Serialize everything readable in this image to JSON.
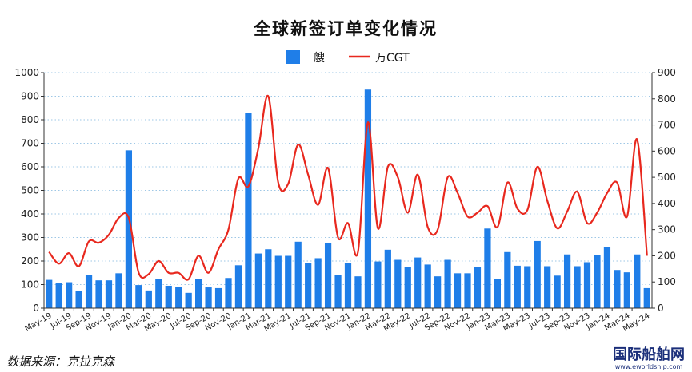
{
  "chart_data": {
    "type": "bar",
    "title": "全球新签订单变化情况",
    "categories": [
      "May-19",
      "Jun-19",
      "Jul-19",
      "Aug-19",
      "Sep-19",
      "Oct-19",
      "Nov-19",
      "Dec-19",
      "Jan-20",
      "Feb-20",
      "Mar-20",
      "Apr-20",
      "May-20",
      "Jun-20",
      "Jul-20",
      "Aug-20",
      "Sep-20",
      "Oct-20",
      "Nov-20",
      "Dec-20",
      "Jan-21",
      "Feb-21",
      "Mar-21",
      "Apr-21",
      "May-21",
      "Jun-21",
      "Jul-21",
      "Aug-21",
      "Sep-21",
      "Oct-21",
      "Nov-21",
      "Dec-21",
      "Jan-22",
      "Feb-22",
      "Mar-22",
      "Apr-22",
      "May-22",
      "Jun-22",
      "Jul-22",
      "Aug-22",
      "Sep-22",
      "Oct-22",
      "Nov-22",
      "Dec-22",
      "Jan-23",
      "Feb-23",
      "Mar-23",
      "Apr-23",
      "May-23",
      "Jun-23",
      "Jul-23",
      "Aug-23",
      "Sep-23",
      "Oct-23",
      "Nov-23",
      "Dec-23",
      "Jan-24",
      "Feb-24",
      "Mar-24",
      "Apr-24",
      "May-24"
    ],
    "x_tick_labels": [
      "May-19",
      "Jul-19",
      "Sep-19",
      "Nov-19",
      "Jan-20",
      "Mar-20",
      "May-20",
      "Jul-20",
      "Sep-20",
      "Nov-20",
      "Jan-21",
      "Mar-21",
      "May-21",
      "Jul-21",
      "Sep-21",
      "Nov-21",
      "Jan-22",
      "Mar-22",
      "May-22",
      "Jul-22",
      "Sep-22",
      "Nov-22",
      "Jan-23",
      "Mar-23",
      "May-23",
      "Jul-23",
      "Sep-23",
      "Nov-23",
      "Jan-24",
      "Mar-24",
      "May-24"
    ],
    "series": [
      {
        "name": "艘",
        "type": "bar",
        "axis": "left",
        "color": "#1f7ee8",
        "values": [
          120,
          105,
          110,
          72,
          142,
          118,
          118,
          148,
          670,
          98,
          75,
          125,
          95,
          90,
          65,
          125,
          88,
          85,
          128,
          182,
          828,
          232,
          250,
          222,
          222,
          282,
          192,
          212,
          278,
          140,
          192,
          135,
          928,
          198,
          248,
          205,
          175,
          215,
          185,
          135,
          205,
          148,
          148,
          175,
          338,
          125,
          238,
          180,
          178,
          285,
          178,
          138,
          228,
          178,
          195,
          225,
          260,
          162,
          152,
          228,
          85
        ]
      },
      {
        "name": "万CGT",
        "type": "line",
        "axis": "right",
        "color": "#e8281e",
        "values": [
          215,
          170,
          210,
          160,
          255,
          250,
          280,
          345,
          345,
          135,
          130,
          180,
          135,
          135,
          110,
          200,
          135,
          225,
          300,
          495,
          465,
          610,
          810,
          480,
          475,
          625,
          510,
          395,
          535,
          270,
          325,
          215,
          710,
          305,
          540,
          500,
          365,
          510,
          310,
          300,
          500,
          440,
          350,
          365,
          390,
          310,
          480,
          380,
          375,
          540,
          410,
          305,
          370,
          445,
          325,
          365,
          440,
          480,
          350,
          645,
          200
        ]
      }
    ],
    "y_left": {
      "min": 0,
      "max": 1000,
      "ticks": [
        0,
        100,
        200,
        300,
        400,
        500,
        600,
        700,
        800,
        900,
        1000
      ]
    },
    "y_right": {
      "min": 0,
      "max": 900,
      "ticks": [
        0,
        100,
        200,
        300,
        400,
        500,
        600,
        700,
        800,
        900
      ]
    },
    "grid": "dotted-horizontal",
    "legend_position": "top-center"
  },
  "legend": {
    "bar_label": "艘",
    "line_label": "万CGT"
  },
  "footer": {
    "source": "数据来源：克拉克森"
  },
  "watermark": {
    "main": "国际船舶网",
    "sub": "www.eworldship.com"
  },
  "colors": {
    "bar": "#1f7ee8",
    "line": "#e8281e",
    "grid": "#9ec7e6",
    "background": "#ffffff"
  }
}
